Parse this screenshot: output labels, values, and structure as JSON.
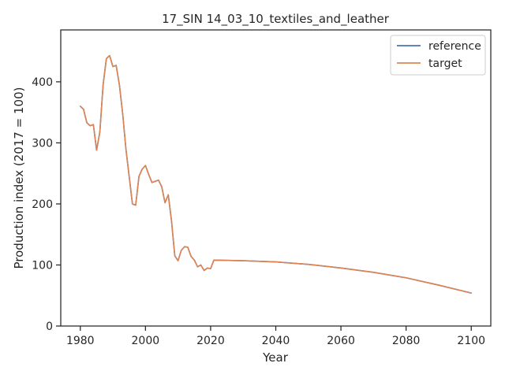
{
  "chart_data": {
    "type": "line",
    "title": "17_SIN 14_03_10_textiles_and_leather",
    "xlabel": "Year",
    "ylabel": "Production index (2017 = 100)",
    "xlim": [
      1974,
      2106
    ],
    "ylim": [
      0,
      485
    ],
    "xticks": [
      1980,
      2000,
      2020,
      2040,
      2060,
      2080,
      2100
    ],
    "yticks": [
      0,
      100,
      200,
      300,
      400
    ],
    "grid": false,
    "legend_position": "top-right",
    "series": [
      {
        "name": "reference",
        "color": "#4c72b0",
        "x": [
          1980,
          1981,
          1982,
          1983,
          1984,
          1985,
          1986,
          1987,
          1988,
          1989,
          1990,
          1991,
          1992,
          1993,
          1994,
          1995,
          1996,
          1997,
          1998,
          1999,
          2000,
          2001,
          2002,
          2003,
          2004,
          2005,
          2006,
          2007,
          2008,
          2009,
          2010,
          2011,
          2012,
          2013,
          2014,
          2015,
          2016,
          2017,
          2018,
          2019,
          2020,
          2021,
          2030,
          2040,
          2050,
          2060,
          2070,
          2080,
          2090,
          2100
        ],
        "y": [
          360,
          355,
          333,
          328,
          330,
          288,
          318,
          395,
          438,
          443,
          425,
          427,
          395,
          348,
          290,
          245,
          200,
          198,
          245,
          257,
          263,
          248,
          235,
          237,
          239,
          228,
          202,
          215,
          172,
          115,
          107,
          124,
          130,
          129,
          114,
          108,
          97,
          100,
          91,
          95,
          94,
          108,
          107,
          105,
          101,
          95,
          88,
          79,
          67,
          54
        ]
      },
      {
        "name": "target",
        "color": "#dd8452",
        "x": [
          1980,
          1981,
          1982,
          1983,
          1984,
          1985,
          1986,
          1987,
          1988,
          1989,
          1990,
          1991,
          1992,
          1993,
          1994,
          1995,
          1996,
          1997,
          1998,
          1999,
          2000,
          2001,
          2002,
          2003,
          2004,
          2005,
          2006,
          2007,
          2008,
          2009,
          2010,
          2011,
          2012,
          2013,
          2014,
          2015,
          2016,
          2017,
          2018,
          2019,
          2020,
          2021,
          2030,
          2040,
          2050,
          2060,
          2070,
          2080,
          2090,
          2100
        ],
        "y": [
          360,
          355,
          333,
          328,
          330,
          288,
          318,
          395,
          438,
          443,
          425,
          427,
          395,
          348,
          290,
          245,
          200,
          198,
          245,
          257,
          263,
          248,
          235,
          237,
          239,
          228,
          202,
          215,
          172,
          115,
          107,
          124,
          130,
          129,
          114,
          108,
          97,
          100,
          91,
          95,
          94,
          108,
          107,
          105,
          101,
          95,
          88,
          79,
          67,
          54
        ]
      }
    ]
  }
}
